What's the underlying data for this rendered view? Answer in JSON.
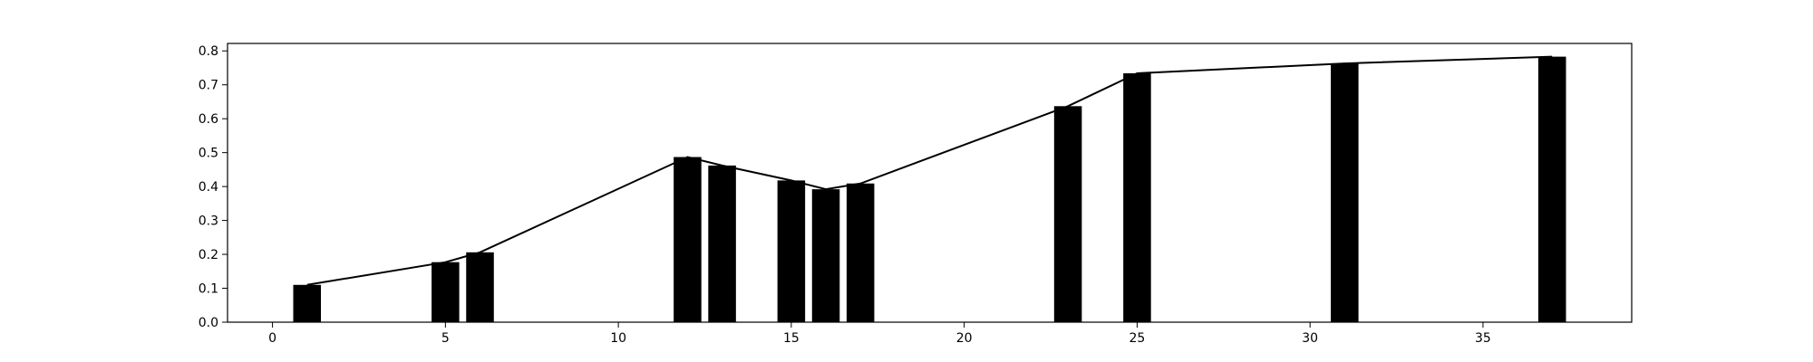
{
  "chart_data": {
    "type": "bar",
    "x": [
      1,
      5,
      6,
      12,
      13,
      15,
      16,
      17,
      23,
      25,
      31,
      37
    ],
    "values": [
      0.11,
      0.177,
      0.206,
      0.487,
      0.462,
      0.418,
      0.392,
      0.409,
      0.637,
      0.734,
      0.763,
      0.783
    ],
    "line_overlay": true,
    "xlim": [
      -1.3,
      39.3
    ],
    "ylim": [
      0,
      0.822
    ],
    "xticks": [
      0,
      5,
      10,
      15,
      20,
      25,
      30,
      35
    ],
    "yticks": [
      0.0,
      0.1,
      0.2,
      0.3,
      0.4,
      0.5,
      0.6,
      0.7,
      0.8
    ],
    "xtick_labels": [
      "0",
      "5",
      "10",
      "15",
      "20",
      "25",
      "30",
      "35"
    ],
    "ytick_labels": [
      "0.0",
      "0.1",
      "0.2",
      "0.3",
      "0.4",
      "0.5",
      "0.6",
      "0.7",
      "0.8"
    ],
    "title": "",
    "xlabel": "",
    "ylabel": "",
    "grid": false,
    "bar_color": "#000000",
    "line_color": "#000000"
  }
}
